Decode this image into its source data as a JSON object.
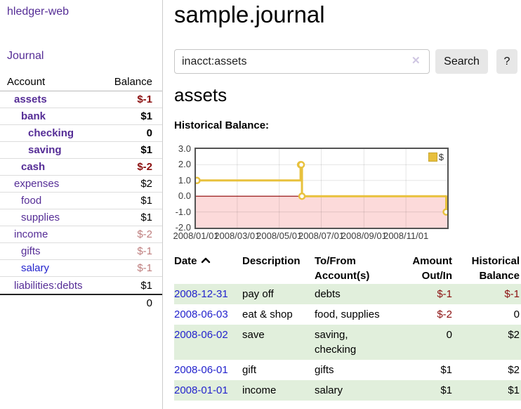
{
  "app": {
    "title": "hledger-web"
  },
  "sidebar": {
    "nav_journal": "Journal",
    "accounts": {
      "header_account": "Account",
      "header_balance": "Balance",
      "rows": [
        {
          "name": "assets",
          "indent": 1,
          "bold": true,
          "name_color": "purple",
          "balance": "$-1",
          "balance_style": "neg-strong b"
        },
        {
          "name": "bank",
          "indent": 2,
          "bold": true,
          "name_color": "purple",
          "balance": "$1",
          "balance_style": "b"
        },
        {
          "name": "checking",
          "indent": 3,
          "bold": true,
          "name_color": "purple",
          "balance": "0",
          "balance_style": "b"
        },
        {
          "name": "saving",
          "indent": 3,
          "bold": true,
          "name_color": "purple",
          "balance": "$1",
          "balance_style": "b"
        },
        {
          "name": "cash",
          "indent": 2,
          "bold": true,
          "name_color": "purple",
          "balance": "$-2",
          "balance_style": "neg-strong b"
        },
        {
          "name": "expenses",
          "indent": 1,
          "bold": false,
          "name_color": "purple",
          "balance": "$2",
          "balance_style": ""
        },
        {
          "name": "food",
          "indent": 2,
          "bold": false,
          "name_color": "purple",
          "balance": "$1",
          "balance_style": ""
        },
        {
          "name": "supplies",
          "indent": 2,
          "bold": false,
          "name_color": "purple",
          "balance": "$1",
          "balance_style": ""
        },
        {
          "name": "income",
          "indent": 1,
          "bold": false,
          "name_color": "purple",
          "balance": "$-2",
          "balance_style": "neg-soft"
        },
        {
          "name": "gifts",
          "indent": 2,
          "bold": false,
          "name_color": "purple",
          "balance": "$-1",
          "balance_style": "neg-soft"
        },
        {
          "name": "salary",
          "indent": 2,
          "bold": false,
          "name_color": "blue",
          "balance": "$-1",
          "balance_style": "neg-soft"
        },
        {
          "name": "liabilities:debts",
          "indent": 1,
          "bold": false,
          "name_color": "purple",
          "balance": "$1",
          "balance_style": ""
        }
      ],
      "total": "0"
    }
  },
  "main": {
    "title": "sample.journal",
    "search": {
      "value": "inacct:assets",
      "clear_icon": "✕",
      "button_label": "Search",
      "help_label": "?"
    },
    "account_heading": "assets"
  },
  "chart_data": {
    "type": "line",
    "title": "Historical Balance:",
    "series": [
      {
        "name": "$",
        "color": "#e8c13d",
        "points": [
          [
            "2008-01-01",
            1
          ],
          [
            "2008-06-01",
            2
          ],
          [
            "2008-06-02",
            2
          ],
          [
            "2008-06-03",
            0
          ],
          [
            "2008-12-31",
            -1
          ]
        ]
      }
    ],
    "step": true,
    "xrange": [
      "2008-01-01",
      "2008-12-31"
    ],
    "ylim": [
      -2,
      3
    ],
    "yticks": [
      3.0,
      2.0,
      1.0,
      0.0,
      -1.0,
      -2.0
    ],
    "xticks": [
      "2008/01/01",
      "2008/03/01",
      "2008/05/01",
      "2008/07/01",
      "2008/09/01",
      "2008/11/01"
    ],
    "grid": true,
    "legend_position": "top-right",
    "zero_line_color": "#8b0000",
    "negative_region_color": "#fcdada"
  },
  "register": {
    "headers": {
      "date": "Date",
      "description": "Description",
      "accounts": "To/From Account(s)",
      "amount": "Amount Out/In",
      "balance": "Historical Balance"
    },
    "rows": [
      {
        "date": "2008-12-31",
        "description": "pay off",
        "accounts": "debts",
        "amount": "$-1",
        "amount_neg": true,
        "balance": "$-1",
        "balance_neg": true
      },
      {
        "date": "2008-06-03",
        "description": "eat & shop",
        "accounts": "food, supplies",
        "amount": "$-2",
        "amount_neg": true,
        "balance": "0",
        "balance_neg": false
      },
      {
        "date": "2008-06-02",
        "description": "save",
        "accounts": "saving, checking",
        "amount": "0",
        "amount_neg": false,
        "balance": "$2",
        "balance_neg": false
      },
      {
        "date": "2008-06-01",
        "description": "gift",
        "accounts": "gifts",
        "amount": "$1",
        "amount_neg": false,
        "balance": "$2",
        "balance_neg": false
      },
      {
        "date": "2008-01-01",
        "description": "income",
        "accounts": "salary",
        "amount": "$1",
        "amount_neg": false,
        "balance": "$1",
        "balance_neg": false
      }
    ]
  }
}
